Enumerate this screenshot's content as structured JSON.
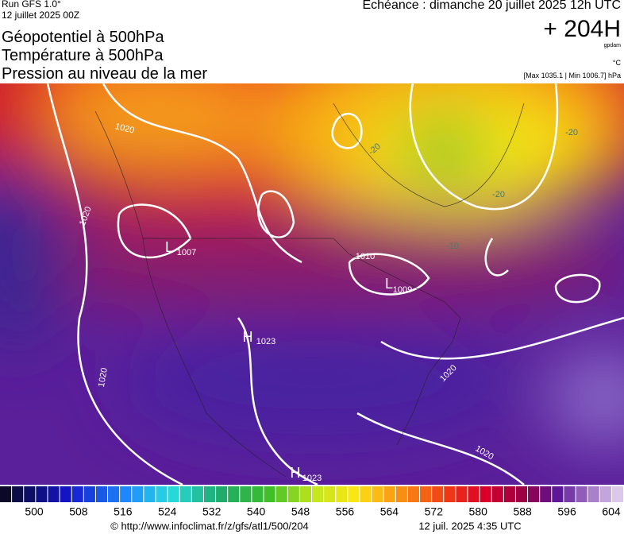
{
  "header": {
    "run": "Run GFS 1.0°",
    "date": "12 juillet 2025 00Z",
    "titles": [
      "Géopotentiel à 500hPa",
      "Température à 500hPa",
      "Pression au niveau de la mer"
    ],
    "echeance": "Echéance : dimanche 20 juillet 2025 12h UTC",
    "lead": "+ 204H",
    "unit_geo": "gpdam",
    "unit_temp": "°C",
    "pressure_range": "[Max 1035.1 | Min 1006.7] hPa"
  },
  "map": {
    "labels": [
      "1020",
      "1020",
      "1020",
      "1020",
      "1020",
      "1010",
      "L",
      "1007",
      "L",
      "1009",
      "H",
      "1023",
      "H",
      "1023",
      "-20",
      "-20",
      "-20",
      "-10"
    ]
  },
  "colorbar": {
    "ticks": [
      500,
      508,
      516,
      524,
      532,
      540,
      548,
      556,
      564,
      572,
      580,
      588,
      596,
      604
    ]
  },
  "footer": {
    "url": "© http://www.infoclimat.fr/z/gfs/atl1/500/204",
    "time": "12 juil. 2025  4:35 UTC"
  }
}
